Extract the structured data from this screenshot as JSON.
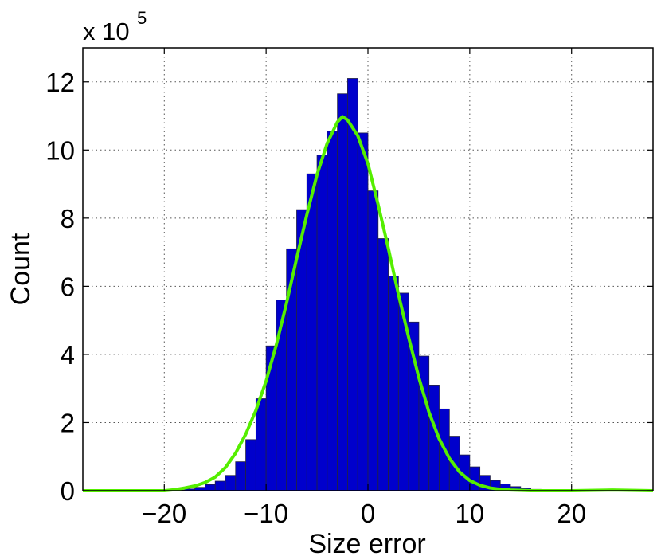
{
  "chart_data": {
    "type": "bar",
    "xlabel": "Size error",
    "ylabel": "Count",
    "y_multiplier_label": "x 10",
    "y_multiplier_exponent": "5",
    "xlim": [
      -28,
      28
    ],
    "ylim": [
      0,
      13
    ],
    "xticks": [
      -20,
      -10,
      0,
      10,
      20
    ],
    "xtick_labels": [
      "−20",
      "−10",
      "0",
      "10",
      "20"
    ],
    "yticks": [
      0,
      2,
      4,
      6,
      8,
      10,
      12
    ],
    "ytick_labels": [
      "0",
      "2",
      "4",
      "6",
      "8",
      "10",
      "12"
    ],
    "grid": true,
    "bar_color": "#0000cc",
    "bar_edge_color": "#222244",
    "fit_color": "#55ee00",
    "histogram": {
      "bin_width": 1,
      "bins": [
        {
          "x0": -19,
          "x1": -18,
          "value": 0.02
        },
        {
          "x0": -18,
          "x1": -17,
          "value": 0.05
        },
        {
          "x0": -17,
          "x1": -16,
          "value": 0.1
        },
        {
          "x0": -16,
          "x1": -15,
          "value": 0.18
        },
        {
          "x0": -15,
          "x1": -14,
          "value": 0.28
        },
        {
          "x0": -14,
          "x1": -13,
          "value": 0.45
        },
        {
          "x0": -13,
          "x1": -12,
          "value": 0.85
        },
        {
          "x0": -12,
          "x1": -11,
          "value": 1.5
        },
        {
          "x0": -11,
          "x1": -10,
          "value": 2.7
        },
        {
          "x0": -10,
          "x1": -9,
          "value": 4.25
        },
        {
          "x0": -9,
          "x1": -8,
          "value": 5.6
        },
        {
          "x0": -8,
          "x1": -7,
          "value": 7.1
        },
        {
          "x0": -7,
          "x1": -6,
          "value": 8.25
        },
        {
          "x0": -6,
          "x1": -5,
          "value": 9.3
        },
        {
          "x0": -5,
          "x1": -4,
          "value": 9.85
        },
        {
          "x0": -4,
          "x1": -3,
          "value": 10.55
        },
        {
          "x0": -3,
          "x1": -2,
          "value": 11.65
        },
        {
          "x0": -2,
          "x1": -1,
          "value": 12.1
        },
        {
          "x0": -1,
          "x1": 0,
          "value": 10.5
        },
        {
          "x0": 0,
          "x1": 1,
          "value": 8.8
        },
        {
          "x0": 1,
          "x1": 2,
          "value": 7.4
        },
        {
          "x0": 2,
          "x1": 3,
          "value": 6.3
        },
        {
          "x0": 3,
          "x1": 4,
          "value": 5.8
        },
        {
          "x0": 4,
          "x1": 5,
          "value": 4.95
        },
        {
          "x0": 5,
          "x1": 6,
          "value": 3.95
        },
        {
          "x0": 6,
          "x1": 7,
          "value": 3.1
        },
        {
          "x0": 7,
          "x1": 8,
          "value": 2.4
        },
        {
          "x0": 8,
          "x1": 9,
          "value": 1.6
        },
        {
          "x0": 9,
          "x1": 10,
          "value": 1.05
        },
        {
          "x0": 10,
          "x1": 11,
          "value": 0.7
        },
        {
          "x0": 11,
          "x1": 12,
          "value": 0.45
        },
        {
          "x0": 12,
          "x1": 13,
          "value": 0.3
        },
        {
          "x0": 13,
          "x1": 14,
          "value": 0.2
        },
        {
          "x0": 14,
          "x1": 15,
          "value": 0.12
        },
        {
          "x0": 15,
          "x1": 16,
          "value": 0.07
        },
        {
          "x0": 16,
          "x1": 17,
          "value": 0.04
        },
        {
          "x0": 17,
          "x1": 18,
          "value": 0.02
        },
        {
          "x0": 18,
          "x1": 19,
          "value": 0.01
        }
      ]
    },
    "fit_curve": {
      "x": [
        -28,
        -22,
        -20,
        -19,
        -18,
        -17,
        -16,
        -15,
        -14,
        -13,
        -12,
        -11,
        -10,
        -9,
        -8,
        -7,
        -6,
        -5,
        -4,
        -3,
        -2.5,
        -2,
        -1,
        0,
        1,
        2,
        3,
        4,
        5,
        6,
        7,
        8,
        9,
        10,
        11,
        12,
        13,
        14,
        16,
        20,
        24,
        28
      ],
      "y": [
        0,
        0,
        0.0,
        0.03,
        0.08,
        0.14,
        0.24,
        0.4,
        0.68,
        1.1,
        1.66,
        2.36,
        3.22,
        4.28,
        5.5,
        6.82,
        8.1,
        9.28,
        10.2,
        10.82,
        10.98,
        10.88,
        10.42,
        9.6,
        8.4,
        7.12,
        5.76,
        4.5,
        3.32,
        2.3,
        1.52,
        0.95,
        0.55,
        0.3,
        0.16,
        0.08,
        0.04,
        0.02,
        0.0,
        0.0,
        0.02,
        0.0
      ]
    }
  }
}
